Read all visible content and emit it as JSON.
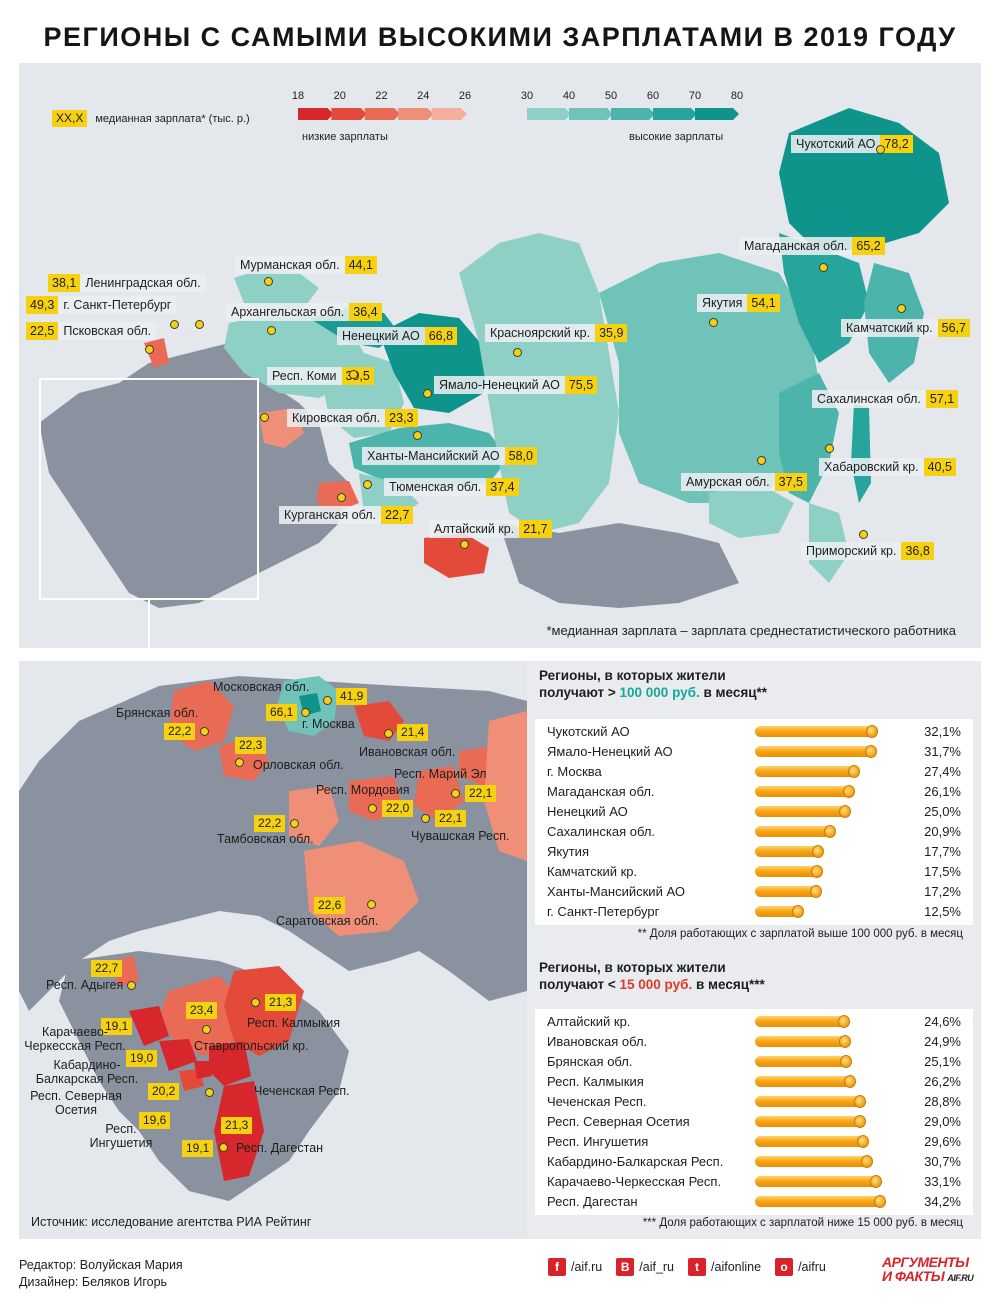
{
  "title": "РЕГИОНЫ С САМЫМИ ВЫСОКИМИ ЗАРПЛАТАМИ В 2019 ГОДУ",
  "legend": {
    "key_box": "XX,X",
    "key_text": "медианная зарплата* (тыс. р.)",
    "low_ticks": [
      "18",
      "20",
      "22",
      "24",
      "26"
    ],
    "low_caption": "низкие зарплаты",
    "high_ticks": [
      "30",
      "40",
      "50",
      "60",
      "70",
      "80"
    ],
    "high_caption": "высокие зарплаты",
    "low_colors": [
      "#d7262c",
      "#e34a3a",
      "#ea6b55",
      "#f08f78",
      "#f4ae9c"
    ],
    "high_colors": [
      "#8fd0c6",
      "#6fc3b9",
      "#4db4ab",
      "#27a49b",
      "#0f948c"
    ]
  },
  "top_map": {
    "labels": [
      {
        "name": "Чукотский АО",
        "value": "78,2"
      },
      {
        "name": "Магаданская обл.",
        "value": "65,2"
      },
      {
        "name": "Мурманская обл.",
        "value": "44,1"
      },
      {
        "name": "Ленинградская обл.",
        "value": "38,1"
      },
      {
        "name": "г. Санкт-Петербург",
        "value": "49,3"
      },
      {
        "name": "Псковская обл.",
        "value": "22,5"
      },
      {
        "name": "Архангельская обл.",
        "value": "36,4"
      },
      {
        "name": "Ненецкий АО",
        "value": "66,8"
      },
      {
        "name": "Красноярский кр.",
        "value": "35,9"
      },
      {
        "name": "Якутия",
        "value": "54,1"
      },
      {
        "name": "Камчатский кр.",
        "value": "56,7"
      },
      {
        "name": "Респ. Коми",
        "value": "39,5"
      },
      {
        "name": "Ямало-Ненецкий АО",
        "value": "75,5"
      },
      {
        "name": "Кировская обл.",
        "value": "23,3"
      },
      {
        "name": "Сахалинская обл.",
        "value": "57,1"
      },
      {
        "name": "Ханты-Мансийский АО",
        "value": "58,0"
      },
      {
        "name": "Хабаровский кр.",
        "value": "40,5"
      },
      {
        "name": "Тюменская обл.",
        "value": "37,4"
      },
      {
        "name": "Амурская обл.",
        "value": "37,5"
      },
      {
        "name": "Курганская обл.",
        "value": "22,7"
      },
      {
        "name": "Алтайский кр.",
        "value": "21,7"
      },
      {
        "name": "Приморский кр.",
        "value": "36,8"
      }
    ],
    "footnote": "*медианная зарплата – зарплата среднестатистического работника"
  },
  "bottom_map": {
    "labels": [
      {
        "name": "Московская обл.",
        "value": "41,9"
      },
      {
        "name": "г. Москва",
        "value": "66,1"
      },
      {
        "name": "Брянская обл.",
        "value": "22,2"
      },
      {
        "name": "Ивановская обл.",
        "value": "21,4"
      },
      {
        "name": "Орловская обл.",
        "value": "22,3"
      },
      {
        "name": "Респ. Марий Эл",
        "value": "22,1"
      },
      {
        "name": "Респ. Мордовия",
        "value": "22,0"
      },
      {
        "name": "Тамбовская обл.",
        "value": "22,2"
      },
      {
        "name": "Чувашская Респ.",
        "value": "22,1"
      },
      {
        "name": "Саратовская обл.",
        "value": "22,6"
      },
      {
        "name": "Респ. Адыгея",
        "value": "22,7"
      },
      {
        "name": "Респ. Калмыкия",
        "value": "21,3"
      },
      {
        "name": "Ставропольский кр.",
        "value": "23,4"
      },
      {
        "name": "Карачаево-Черкесская Респ.",
        "value": "19,1"
      },
      {
        "name": "Кабардино-Балкарская Респ.",
        "value": "19,0"
      },
      {
        "name": "Респ. Северная Осетия",
        "value": "20,2"
      },
      {
        "name": "Чеченская Респ.",
        "value": "21,3"
      },
      {
        "name": "Респ. Ингушетия",
        "value": "19,6"
      },
      {
        "name": "Респ. Дагестан",
        "value": "19,1"
      }
    ],
    "source": "Источник: исследование агентства РИА Рейтинг"
  },
  "high_stats": {
    "head_line1": "Регионы, в которых жители",
    "head_prefix": "получают > ",
    "head_amount": "100 000 руб.",
    "head_suffix": " в месяц**",
    "rows": [
      {
        "name": "Чукотский АО",
        "pct": "32,1%",
        "value": 32.1
      },
      {
        "name": "Ямало-Ненецкий АО",
        "pct": "31,7%",
        "value": 31.7
      },
      {
        "name": "г. Москва",
        "pct": "27,4%",
        "value": 27.4
      },
      {
        "name": "Магаданская обл.",
        "pct": "26,1%",
        "value": 26.1
      },
      {
        "name": "Ненецкий АО",
        "pct": "25,0%",
        "value": 25.0
      },
      {
        "name": "Сахалинская обл.",
        "pct": "20,9%",
        "value": 20.9
      },
      {
        "name": "Якутия",
        "pct": "17,7%",
        "value": 17.7
      },
      {
        "name": "Камчатский кр.",
        "pct": "17,5%",
        "value": 17.5
      },
      {
        "name": "Ханты-Мансийский АО",
        "pct": "17,2%",
        "value": 17.2
      },
      {
        "name": "г. Санкт-Петербург",
        "pct": "12,5%",
        "value": 12.5
      }
    ],
    "note": "** Доля работающих с зарплатой выше 100 000 руб. в месяц"
  },
  "low_stats": {
    "head_line1": "Регионы, в которых жители",
    "head_prefix": "получают < ",
    "head_amount": "15 000 руб.",
    "head_suffix": " в месяц***",
    "rows": [
      {
        "name": "Алтайский кр.",
        "pct": "24,6%",
        "value": 24.6
      },
      {
        "name": "Ивановская обл.",
        "pct": "24,9%",
        "value": 24.9
      },
      {
        "name": "Брянская обл.",
        "pct": "25,1%",
        "value": 25.1
      },
      {
        "name": "Респ. Калмыкия",
        "pct": "26,2%",
        "value": 26.2
      },
      {
        "name": "Чеченская Респ.",
        "pct": "28,8%",
        "value": 28.8
      },
      {
        "name": "Респ. Северная Осетия",
        "pct": "29,0%",
        "value": 29.0
      },
      {
        "name": "Респ. Ингушетия",
        "pct": "29,6%",
        "value": 29.6
      },
      {
        "name": "Кабардино-Балкарская Респ.",
        "pct": "30,7%",
        "value": 30.7
      },
      {
        "name": "Карачаево-Черкесская Респ.",
        "pct": "33,1%",
        "value": 33.1
      },
      {
        "name": "Респ. Дагестан",
        "pct": "34,2%",
        "value": 34.2
      }
    ],
    "note": "*** Доля работающих с зарплатой ниже 15 000 руб. в месяц"
  },
  "footer": {
    "editor": "Редактор: Волуйская Мария",
    "designer": "Дизайнер: Беляков Игорь",
    "socials": [
      {
        "icon": "facebook-icon",
        "glyph": "f",
        "text": "/aif.ru"
      },
      {
        "icon": "vk-icon",
        "glyph": "В",
        "text": "/aif_ru"
      },
      {
        "icon": "twitter-icon",
        "glyph": "t",
        "text": "/aifonline"
      },
      {
        "icon": "odnoklassniki-icon",
        "glyph": "о",
        "text": "/aifru"
      }
    ],
    "logo_line1": "АРГУМЕНТЫ",
    "logo_line2": "И ФАКТЫ",
    "logo_domain": "AIF.RU"
  }
}
